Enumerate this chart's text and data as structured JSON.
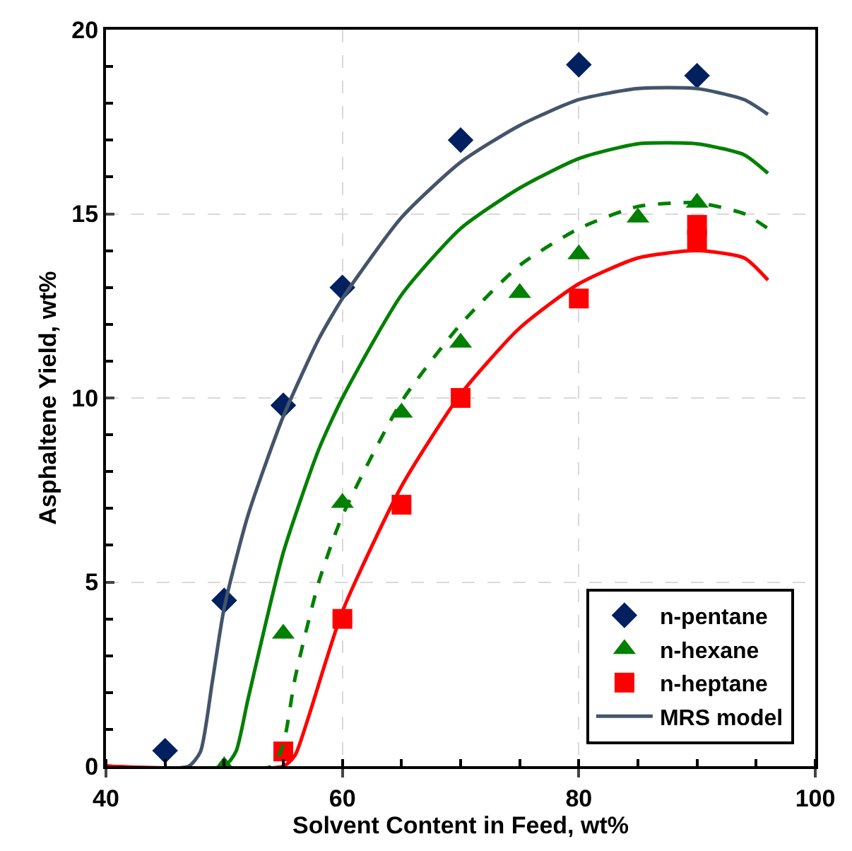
{
  "chart_data": {
    "type": "scatter",
    "xlabel": "Solvent Content in Feed, wt%",
    "ylabel": "Asphaltene Yield, wt%",
    "xlim": [
      40,
      100
    ],
    "xticks": [
      40,
      60,
      80,
      100
    ],
    "ylim": [
      0,
      20
    ],
    "yticks": [
      0,
      5,
      10,
      15,
      20
    ],
    "grid": true,
    "legend": "bottom right",
    "series": [
      {
        "name": "n-pentane",
        "marker": "diamond",
        "color": "#002060",
        "x": [
          45,
          50,
          55,
          60,
          70,
          80,
          90
        ],
        "values": [
          0.42,
          4.5,
          9.8,
          13.0,
          17.0,
          19.05,
          18.75
        ]
      },
      {
        "name": "n-hexane",
        "marker": "triangle",
        "color": "#008000",
        "x": [
          50,
          55,
          60,
          65,
          70,
          75,
          80,
          85,
          90
        ],
        "values": [
          0.0,
          3.6,
          7.15,
          9.6,
          11.5,
          12.85,
          13.9,
          14.9,
          15.3
        ]
      },
      {
        "name": "n-heptane",
        "marker": "square",
        "color": "#ff0000",
        "x": [
          55,
          60,
          65,
          70,
          80,
          90,
          90
        ],
        "values": [
          0.4,
          4.0,
          7.1,
          10.0,
          12.7,
          14.7,
          14.3
        ]
      },
      {
        "name": "MRS model",
        "type": "line",
        "line_style": "solid",
        "color": "#44546a",
        "x": [
          40,
          47,
          48,
          49,
          50,
          52,
          55,
          58,
          60,
          65,
          70,
          75,
          80,
          85,
          90,
          94,
          96
        ],
        "values": [
          0,
          0,
          0.4,
          2.3,
          4.3,
          6.8,
          9.5,
          11.6,
          12.7,
          14.9,
          16.4,
          17.4,
          18.1,
          18.4,
          18.4,
          18.1,
          17.7
        ]
      },
      {
        "type": "line",
        "line_style": "solid",
        "color": "#008000",
        "x": [
          40,
          50,
          51,
          52,
          55,
          58,
          60,
          65,
          70,
          75,
          80,
          85,
          90,
          94,
          96
        ],
        "values": [
          0,
          0,
          0.4,
          1.8,
          5.8,
          8.6,
          10.0,
          12.8,
          14.6,
          15.7,
          16.5,
          16.9,
          16.9,
          16.6,
          16.1
        ]
      },
      {
        "type": "line",
        "line_style": "dashed",
        "color": "#008000",
        "x": [
          40,
          54,
          55,
          56,
          58,
          60,
          65,
          70,
          75,
          80,
          85,
          90,
          94,
          96
        ],
        "values": [
          0,
          0,
          0.6,
          2.4,
          5.0,
          6.8,
          9.9,
          12.0,
          13.6,
          14.6,
          15.2,
          15.3,
          15.0,
          14.6
        ]
      },
      {
        "type": "line",
        "line_style": "solid",
        "color": "#ff0000",
        "x": [
          40,
          55,
          56,
          57,
          60,
          65,
          70,
          75,
          80,
          85,
          90,
          94,
          96
        ],
        "values": [
          0,
          0,
          0.3,
          1.2,
          4.2,
          7.6,
          10.1,
          11.9,
          13.1,
          13.8,
          14.0,
          13.8,
          13.2
        ]
      }
    ]
  }
}
